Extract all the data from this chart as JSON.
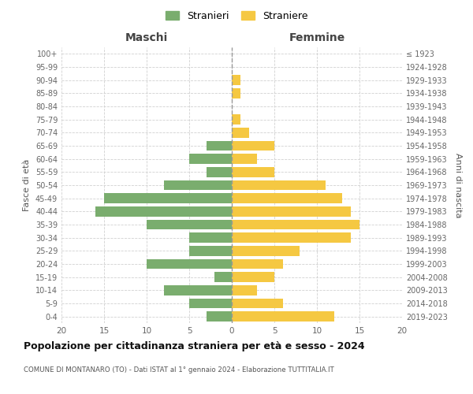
{
  "age_groups": [
    "0-4",
    "5-9",
    "10-14",
    "15-19",
    "20-24",
    "25-29",
    "30-34",
    "35-39",
    "40-44",
    "45-49",
    "50-54",
    "55-59",
    "60-64",
    "65-69",
    "70-74",
    "75-79",
    "80-84",
    "85-89",
    "90-94",
    "95-99",
    "100+"
  ],
  "birth_years": [
    "2019-2023",
    "2014-2018",
    "2009-2013",
    "2004-2008",
    "1999-2003",
    "1994-1998",
    "1989-1993",
    "1984-1988",
    "1979-1983",
    "1974-1978",
    "1969-1973",
    "1964-1968",
    "1959-1963",
    "1954-1958",
    "1949-1953",
    "1944-1948",
    "1939-1943",
    "1934-1938",
    "1929-1933",
    "1924-1928",
    "≤ 1923"
  ],
  "maschi": [
    3,
    5,
    8,
    2,
    10,
    5,
    5,
    10,
    16,
    15,
    8,
    3,
    5,
    3,
    0,
    0,
    0,
    0,
    0,
    0,
    0
  ],
  "femmine": [
    12,
    6,
    3,
    5,
    6,
    8,
    14,
    15,
    14,
    13,
    11,
    5,
    3,
    5,
    2,
    1,
    0,
    1,
    1,
    0,
    0
  ],
  "color_maschi": "#7aad6e",
  "color_femmine": "#f5c842",
  "title": "Popolazione per cittadinanza straniera per età e sesso - 2024",
  "subtitle": "COMUNE DI MONTANARO (TO) - Dati ISTAT al 1° gennaio 2024 - Elaborazione TUTTITALIA.IT",
  "label_maschi": "Stranieri",
  "label_femmine": "Straniere",
  "xlabel_left": "Maschi",
  "xlabel_right": "Femmine",
  "ylabel_left": "Fasce di età",
  "ylabel_right": "Anni di nascita",
  "xlim": 20,
  "background_color": "#ffffff"
}
